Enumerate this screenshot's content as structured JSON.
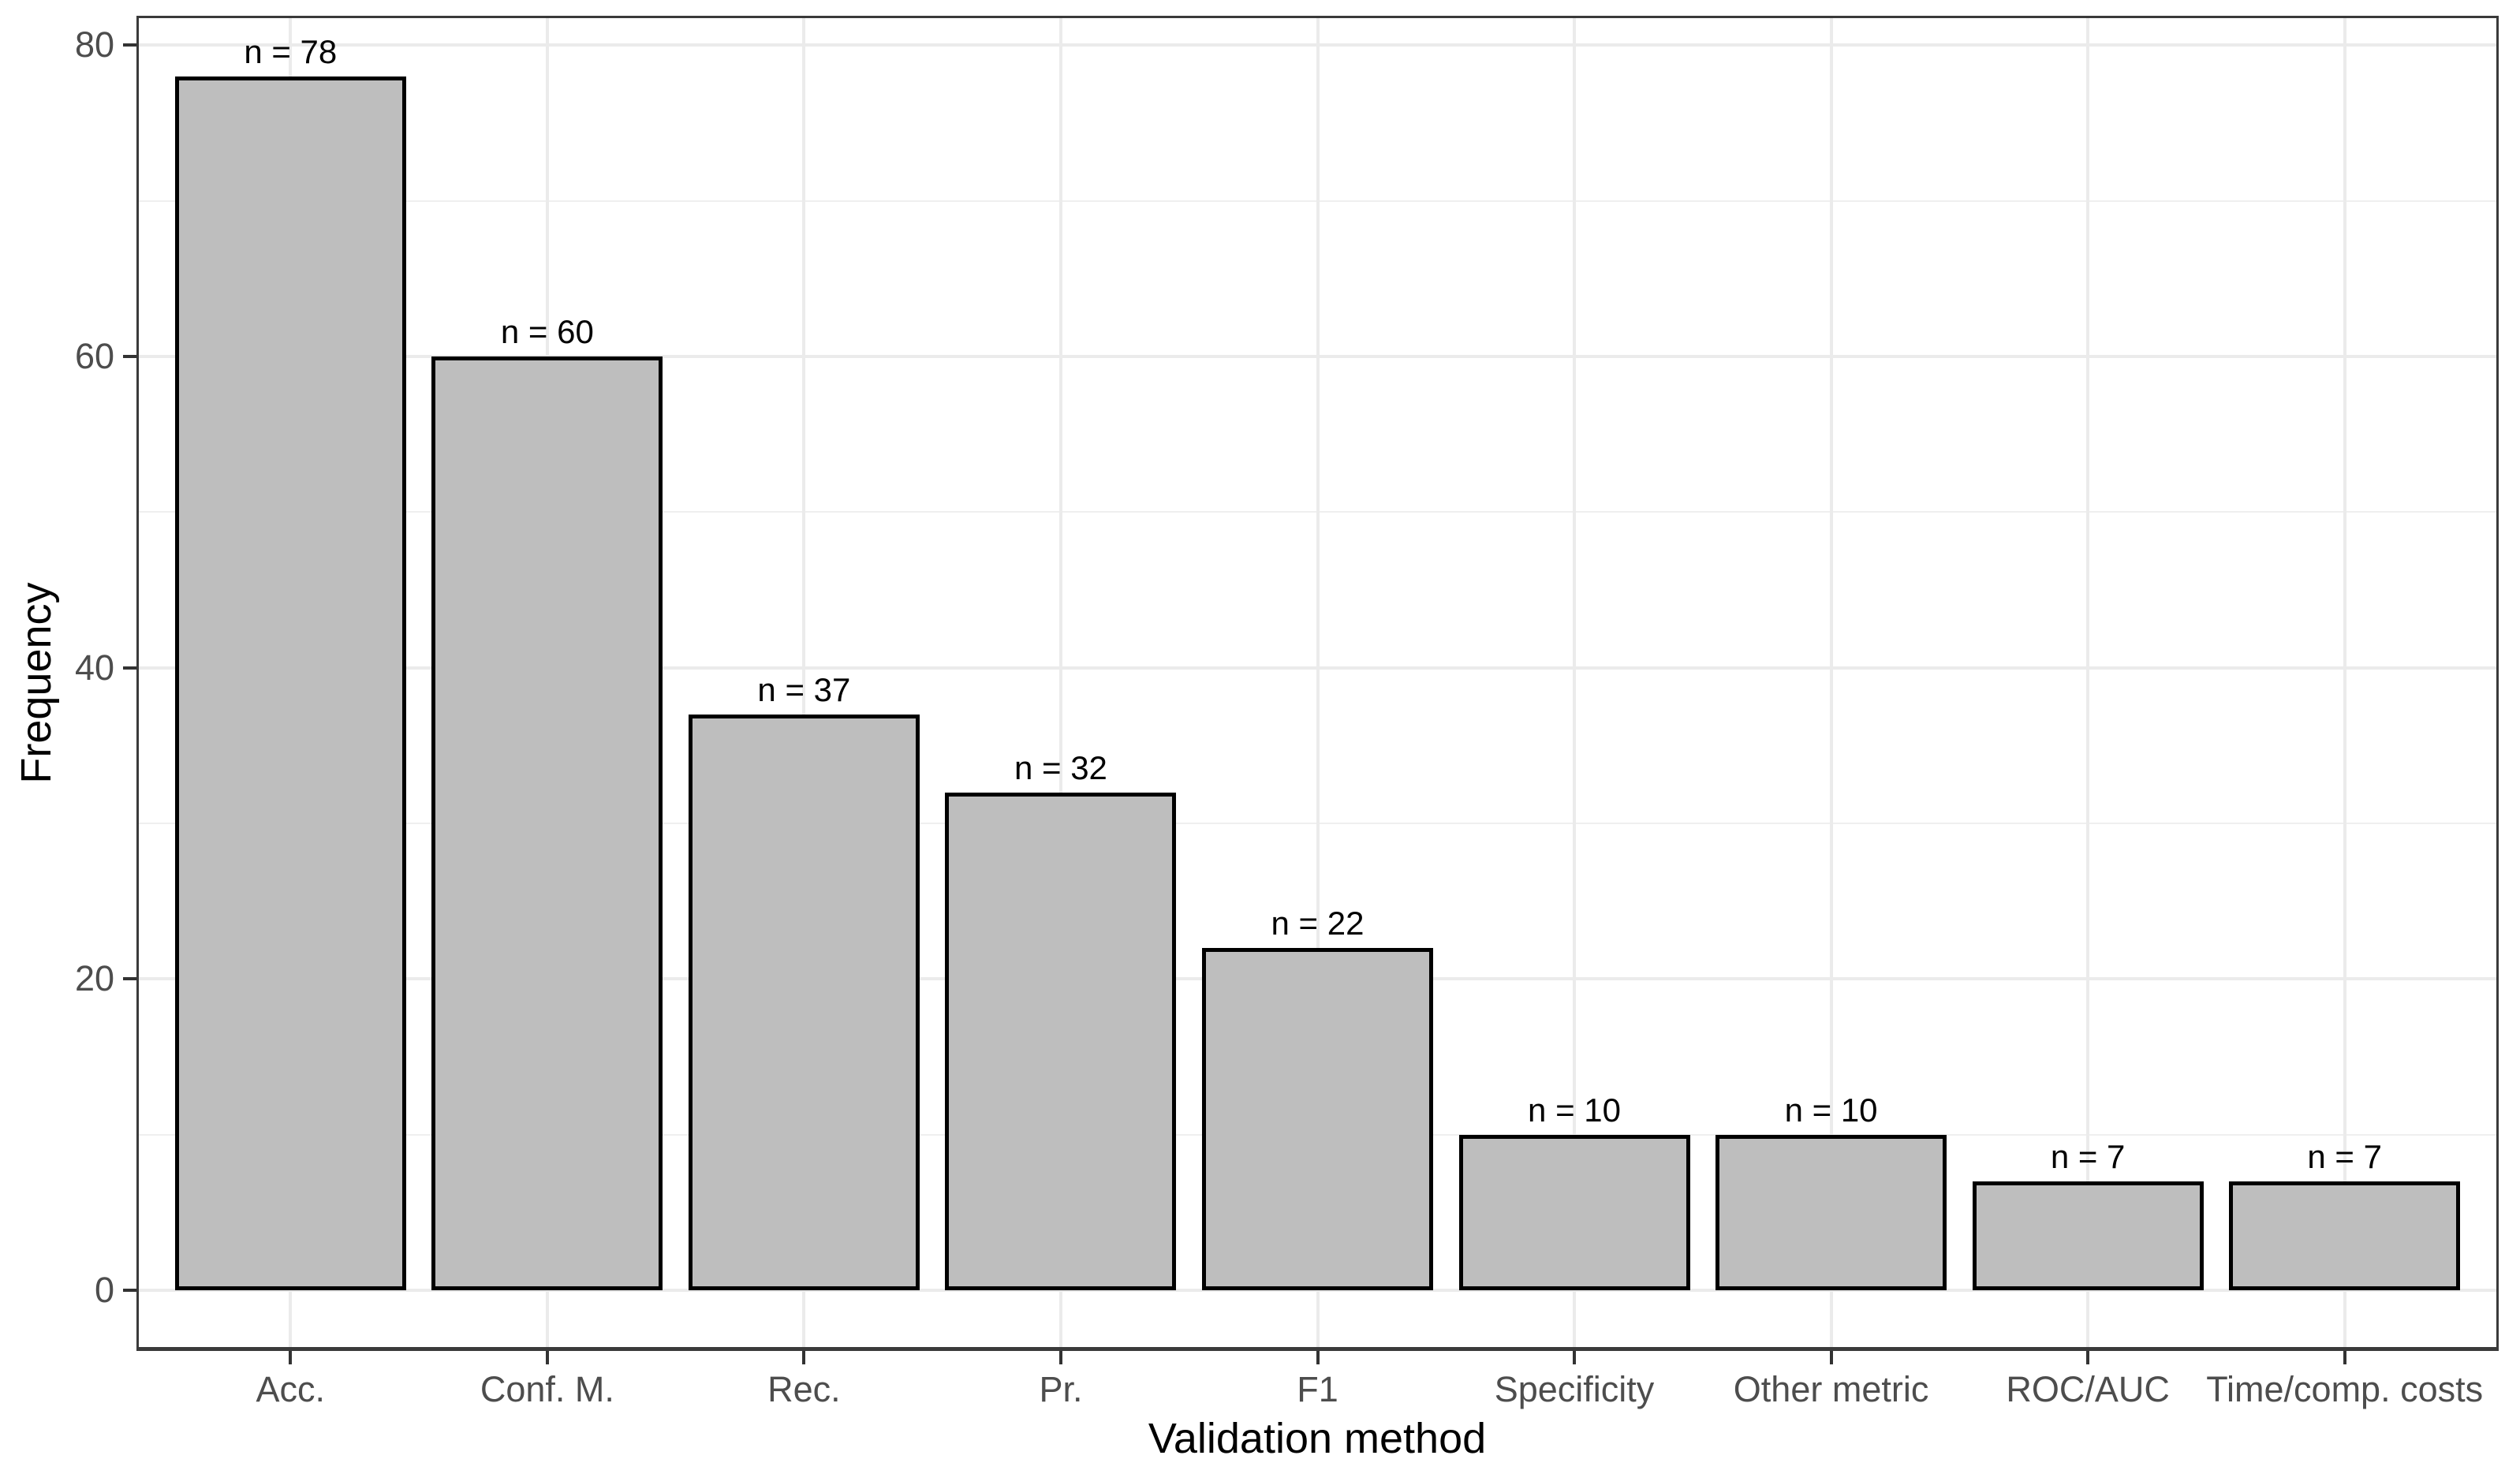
{
  "chart_data": {
    "type": "bar",
    "title": "",
    "xlabel": "Validation method",
    "ylabel": "Frequency",
    "categories": [
      "Acc.",
      "Conf. M.",
      "Rec.",
      "Pr.",
      "F1",
      "Specificity",
      "Other metric",
      "ROC/AUC",
      "Time/comp. costs"
    ],
    "values": [
      78,
      60,
      37,
      32,
      22,
      10,
      10,
      7,
      7
    ],
    "bar_labels": [
      "n = 78",
      "n = 60",
      "n = 37",
      "n = 32",
      "n = 22",
      "n = 10",
      "n = 10",
      "n = 7",
      "n = 7"
    ],
    "yticks": [
      0,
      20,
      40,
      60,
      80
    ],
    "ytick_labels": [
      "0",
      "20",
      "40",
      "60",
      "80"
    ],
    "yticks_minor": [
      10,
      30,
      50,
      70
    ],
    "ylim": [
      0,
      80
    ],
    "grid": "horizontal major+minor, vertical major at category centers",
    "legend": "none",
    "colors": {
      "bar_fill": "#bebebe",
      "bar_border": "#000000",
      "grid_major": "#ebebeb",
      "grid_minor": "#efefef",
      "panel_border": "#3a3a3a",
      "tick_mark": "#333333",
      "axis_text": "#4d4d4d",
      "axis_title": "#000000",
      "background": "#ffffff"
    }
  }
}
